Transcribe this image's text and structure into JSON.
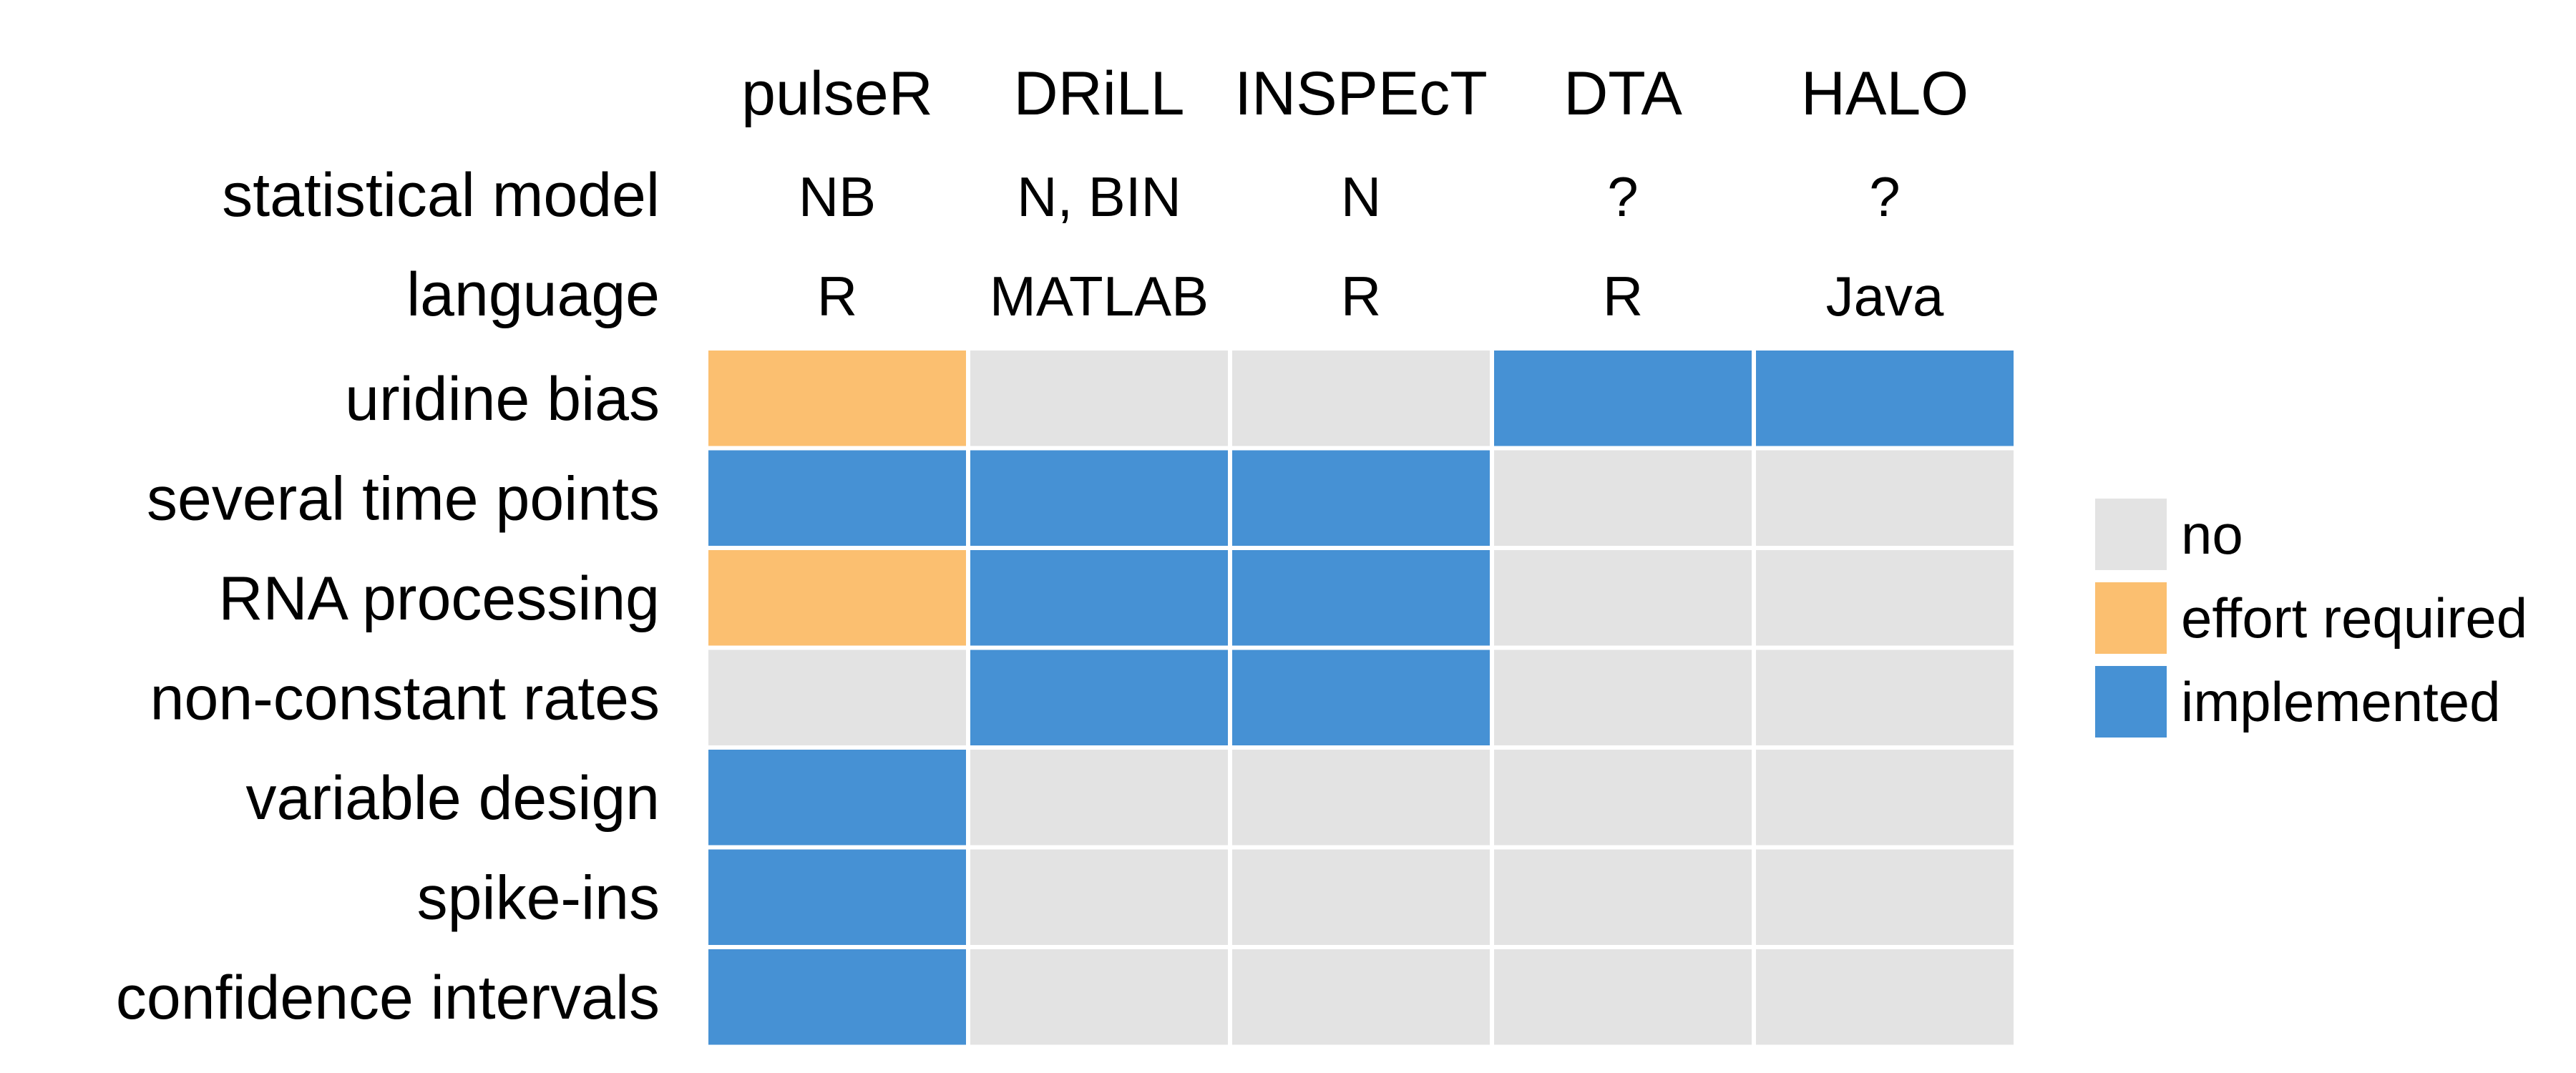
{
  "chart_data": {
    "type": "heatmap",
    "tools": [
      "pulseR",
      "DRiLL",
      "INSPEcT",
      "DTA",
      "HALO"
    ],
    "info_rows": [
      {
        "label": "statistical model",
        "values": [
          "NB",
          "N, BIN",
          "N",
          "?",
          "?"
        ]
      },
      {
        "label": "language",
        "values": [
          "R",
          "MATLAB",
          "R",
          "R",
          "Java"
        ]
      }
    ],
    "features": [
      "uridine bias",
      "several time points",
      "RNA processing",
      "non-constant rates",
      "variable design",
      "spike-ins",
      "confidence intervals"
    ],
    "matrix": [
      [
        "effort required",
        "no",
        "no",
        "implemented",
        "implemented"
      ],
      [
        "implemented",
        "implemented",
        "implemented",
        "no",
        "no"
      ],
      [
        "effort required",
        "implemented",
        "implemented",
        "no",
        "no"
      ],
      [
        "no",
        "implemented",
        "implemented",
        "no",
        "no"
      ],
      [
        "implemented",
        "no",
        "no",
        "no",
        "no"
      ],
      [
        "implemented",
        "no",
        "no",
        "no",
        "no"
      ],
      [
        "implemented",
        "no",
        "no",
        "no",
        "no"
      ]
    ],
    "legend": {
      "placement": "right",
      "levels": [
        {
          "label": "no",
          "color": "#e3e3e3"
        },
        {
          "label": "effort required",
          "color": "#fbbf70"
        },
        {
          "label": "implemented",
          "color": "#4691d4"
        }
      ]
    }
  }
}
